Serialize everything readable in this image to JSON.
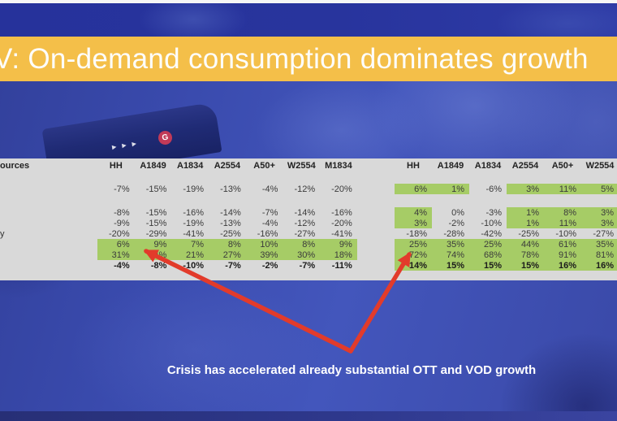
{
  "title": {
    "text": "V: On-demand consumption dominates growth"
  },
  "table": {
    "left": {
      "label_header": "ources",
      "headers": [
        "HH",
        "A1849",
        "A1834",
        "A2554",
        "A50+",
        "W2554",
        "M1834"
      ],
      "rows": [
        {
          "label": "",
          "values": [
            "-7%",
            "-15%",
            "-19%",
            "-13%",
            "-4%",
            "-12%",
            "-20%"
          ],
          "green": [
            0,
            0,
            0,
            0,
            0,
            0,
            0
          ],
          "bold": 0
        },
        {
          "label": "",
          "values": [
            "-8%",
            "-15%",
            "-16%",
            "-14%",
            "-7%",
            "-14%",
            "-16%"
          ],
          "green": [
            0,
            0,
            0,
            0,
            0,
            0,
            0
          ],
          "bold": 0
        },
        {
          "label": "",
          "values": [
            "-9%",
            "-15%",
            "-19%",
            "-13%",
            "-4%",
            "-12%",
            "-20%"
          ],
          "green": [
            0,
            0,
            0,
            0,
            0,
            0,
            0
          ],
          "bold": 0
        },
        {
          "label": "y",
          "values": [
            "-20%",
            "-29%",
            "-41%",
            "-25%",
            "-16%",
            "-27%",
            "-41%"
          ],
          "green": [
            0,
            0,
            0,
            0,
            0,
            0,
            0
          ],
          "bold": 0
        },
        {
          "label": "",
          "values": [
            "6%",
            "9%",
            "7%",
            "8%",
            "10%",
            "8%",
            "9%"
          ],
          "green": [
            1,
            1,
            1,
            1,
            1,
            1,
            1
          ],
          "bold": 0
        },
        {
          "label": "",
          "values": [
            "31%",
            "24%",
            "21%",
            "27%",
            "39%",
            "30%",
            "18%"
          ],
          "green": [
            1,
            1,
            1,
            1,
            1,
            1,
            1
          ],
          "bold": 0
        },
        {
          "label": "",
          "values": [
            "-4%",
            "-8%",
            "-10%",
            "-7%",
            "-2%",
            "-7%",
            "-11%"
          ],
          "green": [
            0,
            0,
            0,
            0,
            0,
            0,
            0
          ],
          "bold": 1
        }
      ]
    },
    "right": {
      "headers": [
        "HH",
        "A1849",
        "A1834",
        "A2554",
        "A50+",
        "W2554"
      ],
      "rows": [
        {
          "values": [
            "6%",
            "1%",
            "-6%",
            "3%",
            "11%",
            "5%"
          ],
          "green": [
            1,
            1,
            0,
            1,
            1,
            1
          ],
          "bold": 0
        },
        {
          "values": [
            "4%",
            "0%",
            "-3%",
            "1%",
            "8%",
            "3%"
          ],
          "green": [
            1,
            0,
            0,
            1,
            1,
            1
          ],
          "bold": 0
        },
        {
          "values": [
            "3%",
            "-2%",
            "-10%",
            "1%",
            "11%",
            "3%"
          ],
          "green": [
            1,
            0,
            0,
            1,
            1,
            1
          ],
          "bold": 0
        },
        {
          "values": [
            "-18%",
            "-28%",
            "-42%",
            "-25%",
            "-10%",
            "-27%"
          ],
          "green": [
            0,
            0,
            0,
            0,
            0,
            0
          ],
          "bold": 0
        },
        {
          "values": [
            "25%",
            "35%",
            "25%",
            "44%",
            "61%",
            "35%"
          ],
          "green": [
            1,
            1,
            1,
            1,
            1,
            1
          ],
          "bold": 0
        },
        {
          "values": [
            "72%",
            "74%",
            "68%",
            "78%",
            "91%",
            "81%"
          ],
          "green": [
            1,
            1,
            1,
            1,
            1,
            1
          ],
          "bold": 0
        },
        {
          "values": [
            "14%",
            "15%",
            "15%",
            "15%",
            "16%",
            "16%"
          ],
          "green": [
            1,
            1,
            1,
            1,
            1,
            1
          ],
          "bold": 1
        }
      ]
    }
  },
  "caption": {
    "text": "Crisis has accelerated already substantial OTT and VOD growth"
  },
  "icons": {
    "g_badge_letter": "G",
    "play_triangle": "▶"
  },
  "colors": {
    "banner_yellow": "#F4BF49",
    "table_gray": "#D9D9D9",
    "highlight_green": "#A6CC66",
    "arrow_red": "#E23B2B",
    "background_blue": "#3A4BAE",
    "caption_white": "#FFFFFF"
  }
}
